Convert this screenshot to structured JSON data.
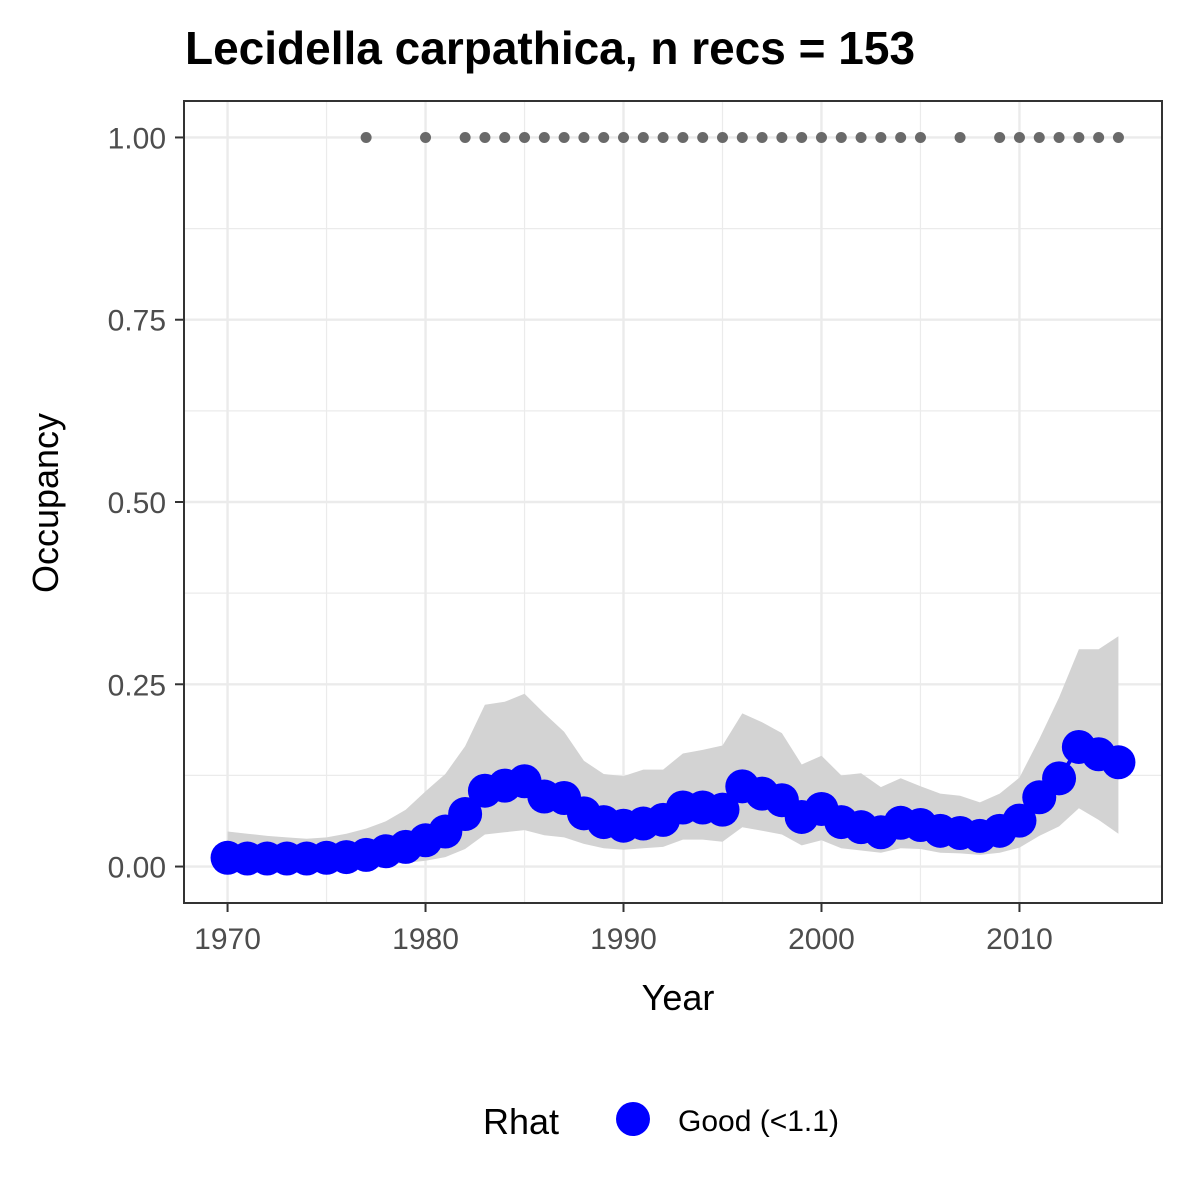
{
  "chart_data": {
    "type": "line",
    "title": "Lecidella carpathica, n recs = 153",
    "xlabel": "Year",
    "ylabel": "Occupancy",
    "xlim": [
      1967.8,
      2017.2
    ],
    "ylim": [
      -0.05,
      1.05
    ],
    "x_ticks": [
      1970,
      1980,
      1990,
      2000,
      2010
    ],
    "y_ticks": [
      0.0,
      0.25,
      0.5,
      0.75,
      1.0
    ],
    "y_tick_labels": [
      "0.00",
      "0.25",
      "0.50",
      "0.75",
      "1.00"
    ],
    "grid": true,
    "legend_position": "bottom",
    "legend": {
      "title": "Rhat",
      "entries": [
        {
          "label": "Good (<1.1)",
          "color": "#0000ff"
        }
      ]
    },
    "colors": {
      "mean": "#0000ff",
      "ribbon": "#d3d3d3",
      "records": "#696969",
      "grid": "#ebebeb",
      "panel_border": "#333333"
    },
    "series": [
      {
        "name": "mean",
        "x": [
          1970,
          1971,
          1972,
          1973,
          1974,
          1975,
          1976,
          1977,
          1978,
          1979,
          1980,
          1981,
          1982,
          1983,
          1984,
          1985,
          1986,
          1987,
          1988,
          1989,
          1990,
          1991,
          1992,
          1993,
          1994,
          1995,
          1996,
          1997,
          1998,
          1999,
          2000,
          2001,
          2002,
          2003,
          2004,
          2005,
          2006,
          2007,
          2008,
          2009,
          2010,
          2011,
          2012,
          2013,
          2014,
          2015
        ],
        "y": [
          0.012,
          0.011,
          0.011,
          0.011,
          0.011,
          0.012,
          0.013,
          0.016,
          0.021,
          0.027,
          0.036,
          0.048,
          0.072,
          0.104,
          0.111,
          0.117,
          0.096,
          0.094,
          0.073,
          0.061,
          0.056,
          0.059,
          0.064,
          0.081,
          0.081,
          0.078,
          0.11,
          0.1,
          0.091,
          0.068,
          0.079,
          0.061,
          0.054,
          0.047,
          0.06,
          0.057,
          0.049,
          0.046,
          0.042,
          0.049,
          0.063,
          0.095,
          0.121,
          0.164,
          0.154,
          0.143
        ]
      },
      {
        "name": "ci_upper",
        "x": [
          1970,
          1971,
          1972,
          1973,
          1974,
          1975,
          1976,
          1977,
          1978,
          1979,
          1980,
          1981,
          1982,
          1983,
          1984,
          1985,
          1986,
          1987,
          1988,
          1989,
          1990,
          1991,
          1992,
          1993,
          1994,
          1995,
          1996,
          1997,
          1998,
          1999,
          2000,
          2001,
          2002,
          2003,
          2004,
          2005,
          2006,
          2007,
          2008,
          2009,
          2010,
          2011,
          2012,
          2013,
          2014,
          2015
        ],
        "y": [
          0.048,
          0.045,
          0.042,
          0.04,
          0.038,
          0.04,
          0.045,
          0.052,
          0.062,
          0.078,
          0.103,
          0.127,
          0.165,
          0.222,
          0.226,
          0.237,
          0.21,
          0.185,
          0.145,
          0.127,
          0.124,
          0.133,
          0.133,
          0.155,
          0.16,
          0.166,
          0.21,
          0.198,
          0.183,
          0.14,
          0.152,
          0.125,
          0.128,
          0.109,
          0.121,
          0.11,
          0.1,
          0.097,
          0.088,
          0.1,
          0.122,
          0.175,
          0.232,
          0.298,
          0.298,
          0.316
        ]
      },
      {
        "name": "ci_lower",
        "x": [
          1970,
          1971,
          1972,
          1973,
          1974,
          1975,
          1976,
          1977,
          1978,
          1979,
          1980,
          1981,
          1982,
          1983,
          1984,
          1985,
          1986,
          1987,
          1988,
          1989,
          1990,
          1991,
          1992,
          1993,
          1994,
          1995,
          1996,
          1997,
          1998,
          1999,
          2000,
          2001,
          2002,
          2003,
          2004,
          2005,
          2006,
          2007,
          2008,
          2009,
          2010,
          2011,
          2012,
          2013,
          2014,
          2015
        ],
        "y": [
          0.001,
          0.001,
          0.001,
          0.001,
          0.001,
          0.001,
          0.001,
          0.002,
          0.003,
          0.005,
          0.008,
          0.013,
          0.024,
          0.044,
          0.047,
          0.05,
          0.043,
          0.04,
          0.031,
          0.025,
          0.023,
          0.025,
          0.027,
          0.037,
          0.037,
          0.034,
          0.054,
          0.049,
          0.044,
          0.029,
          0.036,
          0.025,
          0.022,
          0.019,
          0.025,
          0.024,
          0.019,
          0.018,
          0.016,
          0.019,
          0.026,
          0.042,
          0.055,
          0.08,
          0.064,
          0.045
        ]
      },
      {
        "name": "records",
        "x": [
          1977,
          1980,
          1982,
          1983,
          1984,
          1985,
          1986,
          1987,
          1988,
          1989,
          1990,
          1991,
          1992,
          1993,
          1994,
          1995,
          1996,
          1997,
          1998,
          1999,
          2000,
          2001,
          2002,
          2003,
          2004,
          2005,
          2007,
          2009,
          2010,
          2011,
          2012,
          2013,
          2014,
          2015
        ],
        "y": [
          1,
          1,
          1,
          1,
          1,
          1,
          1,
          1,
          1,
          1,
          1,
          1,
          1,
          1,
          1,
          1,
          1,
          1,
          1,
          1,
          1,
          1,
          1,
          1,
          1,
          1,
          1,
          1,
          1,
          1,
          1,
          1,
          1,
          1
        ]
      }
    ]
  }
}
